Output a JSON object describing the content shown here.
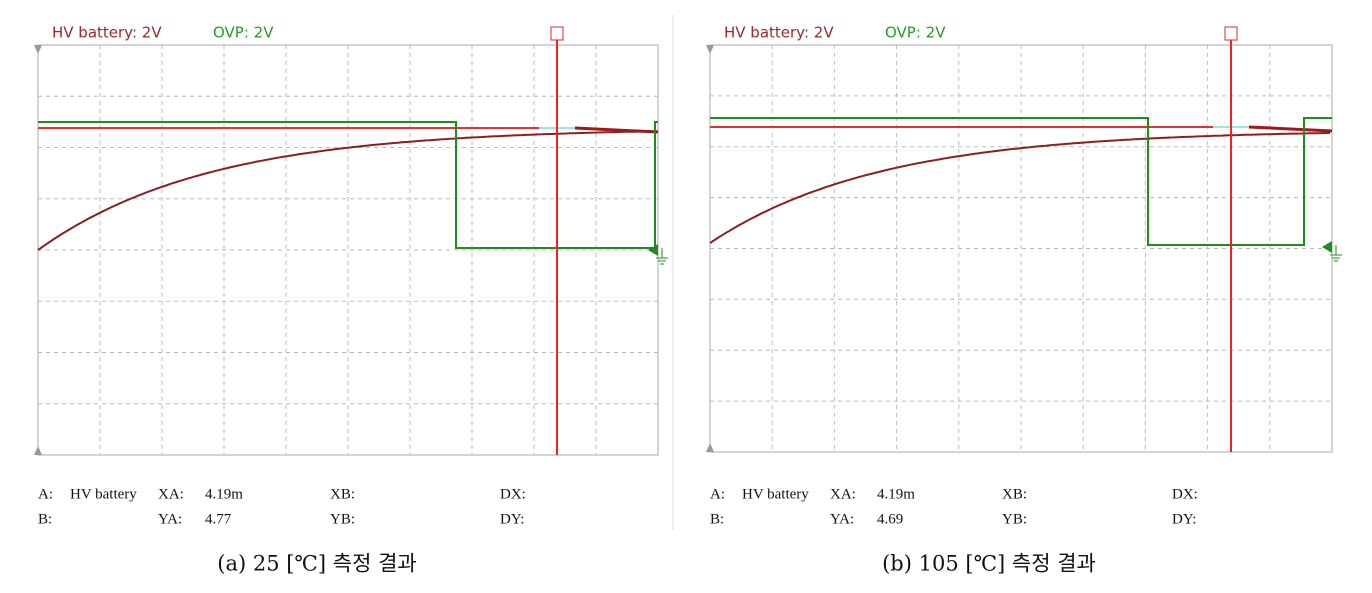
{
  "panels": [
    {
      "header": {
        "channel1": "HV battery: 2V",
        "channel2": "OVP: 2V"
      },
      "readout": {
        "a_label": "A:",
        "a_name": "HV battery",
        "xa_label": "XA:",
        "xa_value": "4.19m",
        "xb_label": "XB:",
        "dx_label": "DX:",
        "b_label": "B:",
        "ya_label": "YA:",
        "ya_value": "4.77",
        "yb_label": "YB:",
        "dy_label": "DY:"
      },
      "caption": "(a) 25 [℃] 측정 결과"
    },
    {
      "header": {
        "channel1": "HV battery: 2V",
        "channel2": "OVP: 2V"
      },
      "readout": {
        "a_label": "A:",
        "a_name": "HV battery",
        "xa_label": "XA:",
        "xa_value": "4.19m",
        "xb_label": "XB:",
        "dx_label": "DX:",
        "b_label": "B:",
        "ya_label": "YA:",
        "ya_value": "4.69",
        "yb_label": "YB:",
        "dy_label": "DY:"
      },
      "caption": "(b) 105 [℃] 측정 결과"
    }
  ]
}
